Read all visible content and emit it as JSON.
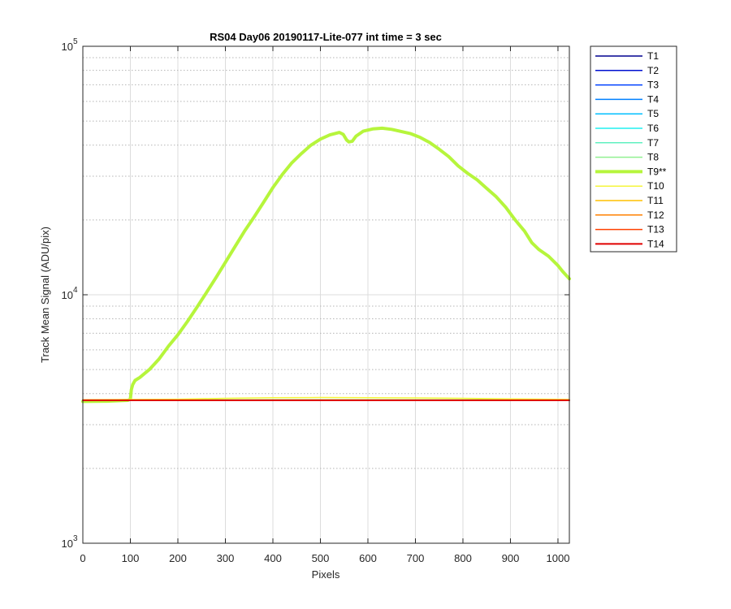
{
  "chart_data": {
    "type": "line",
    "title": "RS04 Day06 20190117-Lite-077 int time = 3 sec",
    "xlabel": "Pixels",
    "ylabel": "Track Mean Signal (ADU/pix)",
    "xlim": [
      0,
      1024
    ],
    "ylim": [
      1000,
      100000
    ],
    "yscale": "log",
    "xticks": [
      0,
      100,
      200,
      300,
      400,
      500,
      600,
      700,
      800,
      900,
      1000
    ],
    "yticks": [
      {
        "value": 1000,
        "base": "10",
        "exp": "3"
      },
      {
        "value": 10000,
        "base": "10",
        "exp": "4"
      },
      {
        "value": 100000,
        "base": "10",
        "exp": "5"
      }
    ],
    "grid": true,
    "legend_position": "outside-right",
    "series": [
      {
        "name": "T1",
        "color": "#00008f",
        "width": 1.5,
        "points": [
          [
            0,
            3760
          ],
          [
            1024,
            3760
          ]
        ]
      },
      {
        "name": "T2",
        "color": "#0010d0",
        "width": 1.5,
        "points": [
          [
            0,
            3765
          ],
          [
            1024,
            3765
          ]
        ]
      },
      {
        "name": "T3",
        "color": "#0040ff",
        "width": 1.5,
        "points": [
          [
            0,
            3770
          ],
          [
            1024,
            3770
          ]
        ]
      },
      {
        "name": "T4",
        "color": "#0080ff",
        "width": 1.5,
        "points": [
          [
            0,
            3770
          ],
          [
            1024,
            3770
          ]
        ]
      },
      {
        "name": "T5",
        "color": "#00bfff",
        "width": 1.5,
        "points": [
          [
            0,
            3775
          ],
          [
            1024,
            3775
          ]
        ]
      },
      {
        "name": "T6",
        "color": "#20f0f0",
        "width": 1.5,
        "points": [
          [
            0,
            3775
          ],
          [
            1024,
            3775
          ]
        ]
      },
      {
        "name": "T7",
        "color": "#60f0c0",
        "width": 1.5,
        "points": [
          [
            0,
            3775
          ],
          [
            1024,
            3775
          ]
        ]
      },
      {
        "name": "T8",
        "color": "#90f090",
        "width": 1.5,
        "points": [
          [
            0,
            3780
          ],
          [
            1024,
            3780
          ]
        ]
      },
      {
        "name": "T9**",
        "color": "#b6f53c",
        "width": 4,
        "points": [
          [
            0,
            3720
          ],
          [
            50,
            3730
          ],
          [
            95,
            3760
          ],
          [
            100,
            3800
          ],
          [
            102,
            4150
          ],
          [
            105,
            4350
          ],
          [
            110,
            4520
          ],
          [
            120,
            4650
          ],
          [
            140,
            5000
          ],
          [
            160,
            5500
          ],
          [
            180,
            6200
          ],
          [
            200,
            6900
          ],
          [
            220,
            7800
          ],
          [
            240,
            8900
          ],
          [
            260,
            10200
          ],
          [
            280,
            11700
          ],
          [
            300,
            13500
          ],
          [
            320,
            15600
          ],
          [
            340,
            18000
          ],
          [
            360,
            20500
          ],
          [
            380,
            23500
          ],
          [
            400,
            27000
          ],
          [
            420,
            30500
          ],
          [
            440,
            34000
          ],
          [
            460,
            37000
          ],
          [
            480,
            40000
          ],
          [
            500,
            42300
          ],
          [
            520,
            44000
          ],
          [
            540,
            45000
          ],
          [
            548,
            44200
          ],
          [
            555,
            42000
          ],
          [
            560,
            41200
          ],
          [
            567,
            41500
          ],
          [
            575,
            43500
          ],
          [
            590,
            45500
          ],
          [
            610,
            46500
          ],
          [
            630,
            46800
          ],
          [
            650,
            46300
          ],
          [
            670,
            45400
          ],
          [
            690,
            44500
          ],
          [
            710,
            43000
          ],
          [
            730,
            41000
          ],
          [
            750,
            38500
          ],
          [
            770,
            36000
          ],
          [
            790,
            33000
          ],
          [
            810,
            30800
          ],
          [
            830,
            29000
          ],
          [
            850,
            26800
          ],
          [
            870,
            24800
          ],
          [
            890,
            22500
          ],
          [
            910,
            20000
          ],
          [
            930,
            18000
          ],
          [
            945,
            16200
          ],
          [
            960,
            15200
          ],
          [
            980,
            14300
          ],
          [
            1000,
            13100
          ],
          [
            1010,
            12400
          ],
          [
            1024,
            11600
          ]
        ]
      },
      {
        "name": "T10",
        "color": "#f5f53c",
        "width": 1.5,
        "points": [
          [
            0,
            3780
          ],
          [
            200,
            3800
          ],
          [
            300,
            3830
          ],
          [
            400,
            3850
          ],
          [
            500,
            3860
          ],
          [
            600,
            3855
          ],
          [
            700,
            3845
          ],
          [
            800,
            3830
          ],
          [
            900,
            3810
          ],
          [
            1024,
            3790
          ]
        ]
      },
      {
        "name": "T11",
        "color": "#ffc000",
        "width": 1.5,
        "points": [
          [
            0,
            3770
          ],
          [
            1024,
            3770
          ]
        ]
      },
      {
        "name": "T12",
        "color": "#ff8000",
        "width": 1.5,
        "points": [
          [
            0,
            3765
          ],
          [
            1024,
            3765
          ]
        ]
      },
      {
        "name": "T13",
        "color": "#ff4000",
        "width": 1.5,
        "points": [
          [
            0,
            3762
          ],
          [
            1024,
            3762
          ]
        ]
      },
      {
        "name": "T14",
        "color": "#e00000",
        "width": 2,
        "points": [
          [
            0,
            3760
          ],
          [
            1024,
            3760
          ]
        ]
      }
    ]
  }
}
